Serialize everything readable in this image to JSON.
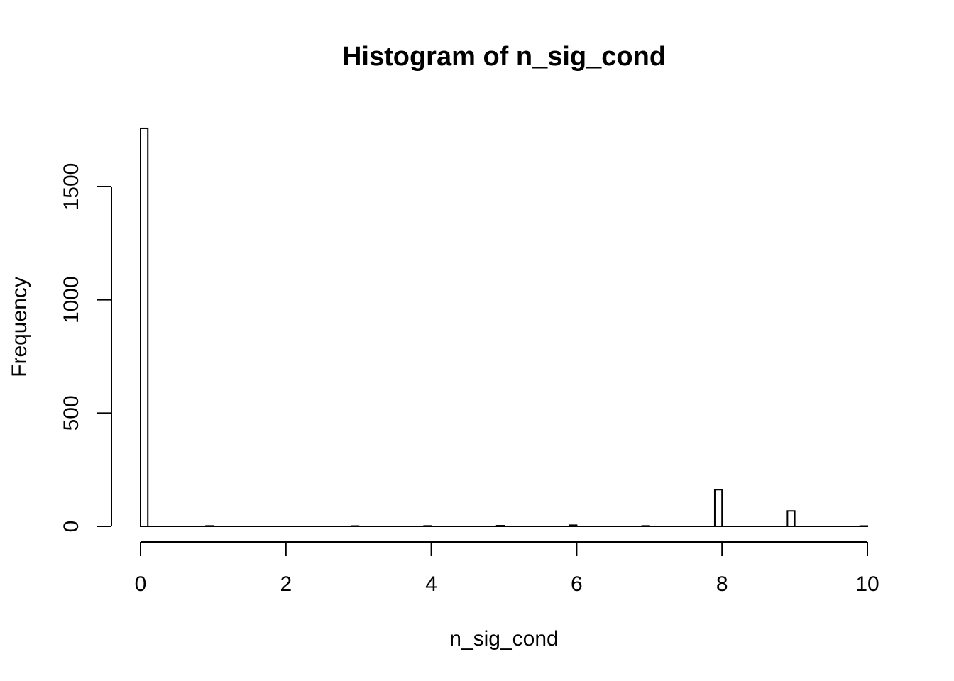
{
  "chart_data": {
    "type": "bar",
    "title": "Histogram of n_sig_cond",
    "xlabel": "n_sig_cond",
    "ylabel": "Frequency",
    "xlim": [
      0,
      10
    ],
    "ylim": [
      0,
      1760
    ],
    "x_ticks": [
      0,
      2,
      4,
      6,
      8,
      10
    ],
    "y_ticks": [
      0,
      500,
      1000,
      1500
    ],
    "bin_width": 0.1,
    "bins": [
      {
        "x0": 0.0,
        "x1": 0.1,
        "count": 1757
      },
      {
        "x0": 0.9,
        "x1": 1.0,
        "count": 2
      },
      {
        "x0": 2.9,
        "x1": 3.0,
        "count": 1
      },
      {
        "x0": 3.9,
        "x1": 4.0,
        "count": 2
      },
      {
        "x0": 4.9,
        "x1": 5.0,
        "count": 3
      },
      {
        "x0": 5.9,
        "x1": 6.0,
        "count": 5
      },
      {
        "x0": 6.9,
        "x1": 7.0,
        "count": 2
      },
      {
        "x0": 7.9,
        "x1": 8.0,
        "count": 162
      },
      {
        "x0": 8.9,
        "x1": 9.0,
        "count": 68
      },
      {
        "x0": 9.9,
        "x1": 10.0,
        "count": 1
      }
    ],
    "grid": false,
    "legend": "none",
    "colors": {
      "bar_fill": "#ffffff",
      "bar_stroke": "#000000",
      "axis": "#000000"
    }
  }
}
